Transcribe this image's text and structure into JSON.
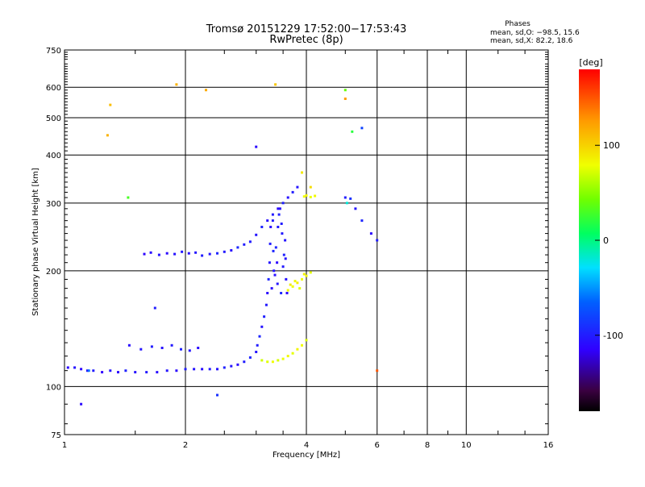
{
  "chart_data": {
    "type": "scatter",
    "title": "Tromsø 20151229 17:52:00−17:53:43",
    "subtitle": "RwPretec (8p)",
    "phase_block": {
      "heading": "Phases",
      "line_o": "mean, sd,O: −98.5, 15.6",
      "line_x": "mean, sd,X:  82.2, 18.6"
    },
    "xlabel": "Frequency [MHz]",
    "ylabel": "Stationary phase Virtual Height [km]",
    "x_scale": "log",
    "y_scale": "log",
    "xlim": [
      1,
      16
    ],
    "ylim": [
      75,
      750
    ],
    "x_ticks": [
      1,
      2,
      4,
      6,
      8,
      10,
      16
    ],
    "x_tick_labels": [
      "1",
      "2",
      "4",
      "6",
      "8",
      "10",
      "16"
    ],
    "y_ticks": [
      75,
      100,
      200,
      300,
      400,
      500,
      600,
      750
    ],
    "y_tick_labels": [
      "75",
      "100",
      "200",
      "300",
      "400",
      "500",
      "600",
      "750"
    ],
    "grid": true,
    "colorbar": {
      "label": "[deg]",
      "range": [
        -180,
        180
      ],
      "ticks": [
        100,
        0,
        -100
      ],
      "tick_labels": [
        "100",
        "0",
        "-100"
      ],
      "colormap": "rainbow-dark-to-red"
    },
    "series": [
      {
        "x": [
          1.02,
          1.06,
          1.1,
          1.14,
          1.18,
          1.24,
          1.3,
          1.36,
          1.42,
          1.5,
          1.6,
          1.7,
          1.8,
          1.9,
          2.0,
          2.1,
          2.2,
          2.3,
          2.4,
          2.5,
          2.6,
          2.7,
          2.8,
          2.9,
          3.0
        ],
        "y": [
          112,
          112,
          111,
          110,
          110,
          109,
          110,
          109,
          110,
          109,
          109,
          109,
          110,
          110,
          111,
          111,
          111,
          111,
          111,
          112,
          113,
          114,
          116,
          119,
          123
        ],
        "c": [
          -110,
          -105,
          -112,
          -108,
          -100,
          -115,
          -104,
          -110,
          -98,
          -106,
          -102,
          -108,
          -104,
          -110,
          -100,
          -105,
          -108,
          -102,
          -106,
          -98,
          -104,
          -110,
          -100,
          -96,
          -104
        ]
      },
      {
        "x": [
          3.02,
          3.06,
          3.1,
          3.14,
          3.18,
          3.2,
          3.22,
          3.24,
          3.25,
          3.26
        ],
        "y": [
          128,
          135,
          143,
          152,
          163,
          175,
          190,
          210,
          235,
          260
        ],
        "c": [
          -100,
          -95,
          -105,
          -98,
          -102,
          -110,
          -96,
          -104,
          -100,
          -108
        ]
      },
      {
        "x": [
          3.28,
          3.32,
          3.36,
          3.4,
          3.44,
          3.48,
          3.52,
          3.56,
          3.3,
          3.38,
          3.46,
          3.54,
          3.34,
          3.42,
          3.5,
          3.58,
          3.31,
          3.39,
          3.47,
          3.55
        ],
        "y": [
          180,
          200,
          230,
          260,
          290,
          250,
          220,
          190,
          270,
          210,
          175,
          240,
          195,
          280,
          205,
          175,
          225,
          185,
          265,
          215
        ],
        "c": [
          -110,
          -104,
          -96,
          -100,
          -108,
          -102,
          -98,
          -106,
          -100,
          -112,
          -94,
          -104,
          -108,
          -98,
          -102,
          -110,
          -96,
          -104,
          -100,
          -106
        ]
      },
      {
        "x": [
          1.45,
          1.55,
          1.65,
          1.75,
          1.85,
          1.95,
          2.05,
          2.15,
          2.2,
          2.3,
          2.4,
          2.5,
          2.6,
          2.7,
          2.8
        ],
        "y": [
          128,
          125,
          127,
          126,
          128,
          125,
          124,
          126,
          219,
          221,
          222,
          224,
          226,
          230,
          234
        ],
        "c": [
          -108,
          -104,
          -100,
          -106,
          -102,
          -98,
          -104,
          -110,
          -100,
          -104,
          -96,
          -102,
          -108,
          -94,
          -100
        ]
      },
      {
        "x": [
          1.58,
          1.64,
          1.72,
          1.8,
          1.88,
          1.96,
          2.04,
          2.12
        ],
        "y": [
          221,
          223,
          220,
          222,
          221,
          224,
          222,
          223
        ],
        "c": [
          -112,
          -108,
          -104,
          -110,
          -106,
          -102,
          -108,
          -104
        ]
      },
      {
        "x": [
          2.9,
          3.0,
          3.1,
          3.2,
          3.3,
          3.4,
          3.5,
          3.6,
          3.7,
          3.8
        ],
        "y": [
          238,
          248,
          260,
          270,
          280,
          290,
          300,
          310,
          320,
          330
        ],
        "c": [
          -100,
          -104,
          -96,
          -108,
          -102,
          -110,
          -98,
          -106,
          -100,
          -104
        ]
      },
      {
        "x": [
          3.1,
          3.2,
          3.3,
          3.4,
          3.5,
          3.6,
          3.7,
          3.8,
          3.9,
          4.0
        ],
        "y": [
          117,
          116,
          116,
          117,
          118,
          120,
          122,
          125,
          128,
          132
        ],
        "c": [
          70,
          75,
          80,
          72,
          78,
          82,
          76,
          84,
          80,
          74
        ]
      },
      {
        "x": [
          3.6,
          3.7,
          3.8,
          3.9,
          4.0,
          4.1,
          3.65,
          3.75,
          3.85,
          3.95
        ],
        "y": [
          178,
          182,
          186,
          190,
          194,
          198,
          184,
          188,
          180,
          196
        ],
        "c": [
          82,
          78,
          86,
          80,
          84,
          76,
          88,
          82,
          74,
          86
        ]
      },
      {
        "x": [
          3.95,
          4.0,
          4.1,
          4.2
        ],
        "y": [
          312,
          314,
          311,
          313
        ],
        "c": [
          80,
          84,
          78,
          82
        ]
      },
      {
        "x": [
          5.0,
          5.05,
          5.15,
          5.3,
          5.5,
          5.8,
          6.0
        ],
        "y": [
          310,
          300,
          308,
          290,
          270,
          250,
          240
        ],
        "c": [
          -100,
          -20,
          -90,
          -104,
          -96,
          -110,
          -100
        ]
      },
      {
        "x": [
          1.3,
          1.9,
          2.25,
          3.35,
          5.0,
          5.2,
          5.5,
          1.28,
          1.15,
          1.44,
          1.68,
          3.0,
          3.9,
          5.0,
          6.0,
          4.1,
          1.1,
          2.4
        ],
        "y": [
          540,
          610,
          590,
          610,
          590,
          460,
          470,
          450,
          110,
          310,
          160,
          420,
          360,
          560,
          110,
          330,
          90,
          95
        ],
        "c": [
          110,
          115,
          118,
          105,
          40,
          20,
          -80,
          115,
          -60,
          30,
          -100,
          -110,
          90,
          125,
          150,
          95,
          -110,
          -90
        ]
      }
    ]
  }
}
